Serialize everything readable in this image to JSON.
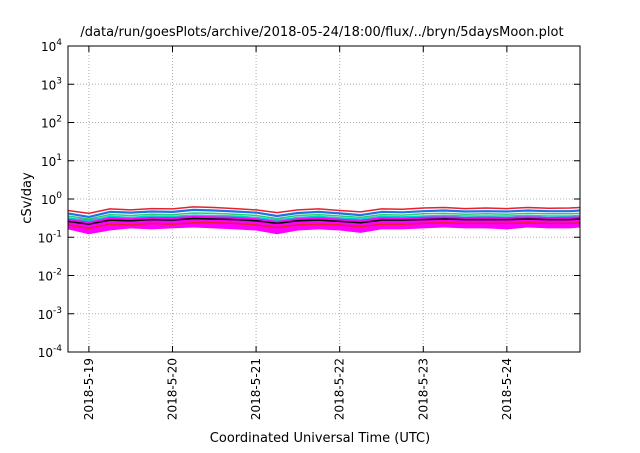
{
  "chart_data": {
    "type": "line",
    "title": "/data/run/goesPlots/archive/2018-05-24/18:00/flux/../bryn/5daysMoon.plot",
    "xlabel": "Coordinated Universal Time (UTC)",
    "ylabel": "cSv/day",
    "yscale": "log",
    "ylim": [
      0.0001,
      10000
    ],
    "xlim": [
      "2018-05-18T18:00",
      "2018-05-24T21:00"
    ],
    "grid": true,
    "legend": "none",
    "x_tick_labels": [
      "2018-5-19",
      "2018-5-20",
      "2018-5-21",
      "2018-5-22",
      "2018-5-23",
      "2018-5-24"
    ],
    "x_ticks": [
      "2018-05-19T00:00",
      "2018-05-20T00:00",
      "2018-05-21T00:00",
      "2018-05-22T00:00",
      "2018-05-23T00:00",
      "2018-05-24T00:00"
    ],
    "y_ticks": [
      {
        "value": 10000,
        "base": "10",
        "exp": "4"
      },
      {
        "value": 1000,
        "base": "10",
        "exp": "3"
      },
      {
        "value": 100,
        "base": "10",
        "exp": "2"
      },
      {
        "value": 10,
        "base": "10",
        "exp": "1"
      },
      {
        "value": 1,
        "base": "10",
        "exp": "0"
      },
      {
        "value": 0.1,
        "base": "10",
        "exp": "-1"
      },
      {
        "value": 0.01,
        "base": "10",
        "exp": "-2"
      },
      {
        "value": 0.001,
        "base": "10",
        "exp": "-3"
      },
      {
        "value": 0.0001,
        "base": "10",
        "exp": "-4"
      }
    ],
    "x_sample_times": [
      "2018-05-18T18:00",
      "2018-05-19T00:00",
      "2018-05-19T06:00",
      "2018-05-19T12:00",
      "2018-05-19T18:00",
      "2018-05-20T00:00",
      "2018-05-20T06:00",
      "2018-05-20T12:00",
      "2018-05-20T18:00",
      "2018-05-21T00:00",
      "2018-05-21T06:00",
      "2018-05-21T12:00",
      "2018-05-21T18:00",
      "2018-05-22T00:00",
      "2018-05-22T06:00",
      "2018-05-22T12:00",
      "2018-05-22T18:00",
      "2018-05-23T00:00",
      "2018-05-23T06:00",
      "2018-05-23T12:00",
      "2018-05-23T18:00",
      "2018-05-24T00:00",
      "2018-05-24T06:00",
      "2018-05-24T12:00",
      "2018-05-24T18:00",
      "2018-05-24T21:00"
    ],
    "magenta_band": {
      "color": "#ff00ff",
      "upper": [
        0.32,
        0.3,
        0.34,
        0.33,
        0.35,
        0.34,
        0.38,
        0.36,
        0.35,
        0.33,
        0.3,
        0.33,
        0.34,
        0.32,
        0.31,
        0.34,
        0.33,
        0.35,
        0.36,
        0.34,
        0.35,
        0.34,
        0.36,
        0.34,
        0.35,
        0.36
      ],
      "lower": [
        0.16,
        0.12,
        0.15,
        0.17,
        0.16,
        0.17,
        0.18,
        0.17,
        0.16,
        0.15,
        0.12,
        0.15,
        0.16,
        0.15,
        0.13,
        0.16,
        0.16,
        0.17,
        0.18,
        0.17,
        0.17,
        0.16,
        0.18,
        0.17,
        0.17,
        0.18
      ]
    },
    "series": [
      {
        "color": "#e8202a",
        "values": [
          0.5,
          0.42,
          0.55,
          0.52,
          0.56,
          0.55,
          0.62,
          0.6,
          0.56,
          0.52,
          0.44,
          0.52,
          0.55,
          0.5,
          0.46,
          0.55,
          0.54,
          0.58,
          0.6,
          0.56,
          0.58,
          0.56,
          0.6,
          0.57,
          0.58,
          0.6
        ]
      },
      {
        "color": "#1e73e8",
        "values": [
          0.42,
          0.34,
          0.46,
          0.44,
          0.47,
          0.46,
          0.52,
          0.5,
          0.47,
          0.44,
          0.36,
          0.43,
          0.46,
          0.42,
          0.38,
          0.46,
          0.45,
          0.48,
          0.5,
          0.47,
          0.48,
          0.47,
          0.5,
          0.48,
          0.48,
          0.5
        ]
      },
      {
        "color": "#2ecc71",
        "values": [
          0.36,
          0.3,
          0.39,
          0.37,
          0.4,
          0.39,
          0.43,
          0.42,
          0.4,
          0.37,
          0.31,
          0.37,
          0.39,
          0.36,
          0.33,
          0.39,
          0.38,
          0.41,
          0.42,
          0.4,
          0.41,
          0.4,
          0.42,
          0.41,
          0.41,
          0.42
        ]
      },
      {
        "color": "#00cfcf",
        "values": [
          0.32,
          0.27,
          0.35,
          0.33,
          0.36,
          0.35,
          0.38,
          0.37,
          0.36,
          0.33,
          0.28,
          0.33,
          0.35,
          0.32,
          0.3,
          0.35,
          0.34,
          0.36,
          0.37,
          0.36,
          0.36,
          0.36,
          0.37,
          0.36,
          0.36,
          0.37
        ]
      },
      {
        "color": "#000000",
        "values": [
          0.26,
          0.22,
          0.28,
          0.27,
          0.29,
          0.28,
          0.31,
          0.3,
          0.29,
          0.27,
          0.23,
          0.27,
          0.28,
          0.26,
          0.24,
          0.28,
          0.28,
          0.29,
          0.3,
          0.29,
          0.29,
          0.29,
          0.3,
          0.29,
          0.29,
          0.3
        ]
      },
      {
        "color": "#e8202a",
        "values": [
          0.21,
          0.17,
          0.22,
          0.21,
          0.23,
          0.22,
          0.24,
          0.24,
          0.23,
          0.21,
          0.18,
          0.21,
          0.22,
          0.21,
          0.19,
          0.22,
          0.22,
          0.23,
          0.24,
          0.23,
          0.23,
          0.23,
          0.24,
          0.23,
          0.23,
          0.24
        ]
      }
    ]
  }
}
